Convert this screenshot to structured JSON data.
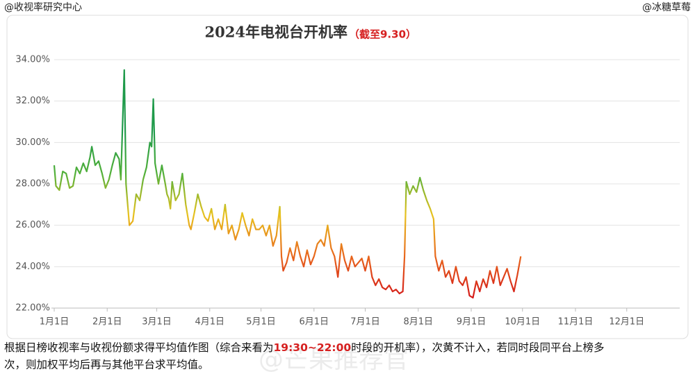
{
  "chart_data": {
    "type": "line",
    "source_left": "@收视率研究中心",
    "source_right": "@冰糖草莓",
    "title": "2024年电视台开机率",
    "subtitle": "（截至9.30）",
    "subtitle_color": "#d62020",
    "x": [
      0,
      1,
      3,
      5,
      7,
      9,
      11,
      13,
      15,
      17,
      19,
      21,
      22,
      24,
      26,
      28,
      30,
      32,
      34,
      36,
      38,
      39,
      41,
      42,
      43,
      44,
      46,
      48,
      50,
      52,
      54,
      56,
      57,
      58,
      59,
      61,
      63,
      65,
      66,
      67,
      68,
      69,
      71,
      73,
      75,
      77,
      79,
      80,
      82,
      84,
      86,
      88,
      90,
      92,
      94,
      96,
      98,
      100,
      102,
      104,
      106,
      108,
      110,
      112,
      114,
      116,
      118,
      120,
      122,
      124,
      126,
      128,
      130,
      132,
      133,
      134,
      136,
      138,
      140,
      142,
      144,
      146,
      148,
      150,
      152,
      154,
      156,
      158,
      160,
      162,
      164,
      166,
      168,
      170,
      172,
      174,
      176,
      178,
      180,
      182,
      184,
      186,
      188,
      190,
      192,
      194,
      196,
      198,
      200,
      202,
      204,
      205,
      206,
      208,
      210,
      212,
      214,
      216,
      218,
      220,
      222,
      223,
      225,
      227,
      229,
      231,
      233,
      235,
      237,
      239,
      241,
      243,
      245,
      247,
      249,
      251,
      253,
      255,
      257,
      259,
      261,
      263,
      265,
      267,
      269,
      271,
      273
    ],
    "values": [
      28.9,
      27.9,
      27.7,
      28.6,
      28.5,
      27.8,
      27.9,
      28.8,
      28.5,
      29.0,
      28.6,
      29.3,
      29.8,
      28.9,
      29.1,
      28.5,
      27.8,
      28.2,
      28.9,
      29.5,
      29.2,
      28.2,
      33.5,
      28.0,
      27.0,
      26.0,
      26.2,
      27.5,
      27.2,
      28.2,
      28.8,
      30.0,
      29.8,
      32.1,
      29.0,
      28.0,
      28.9,
      28.0,
      27.5,
      27.3,
      26.8,
      28.1,
      27.2,
      27.5,
      28.5,
      27.0,
      26.0,
      25.8,
      26.6,
      27.5,
      26.9,
      26.4,
      26.2,
      26.8,
      25.8,
      26.3,
      25.8,
      27.0,
      25.6,
      26.0,
      25.3,
      25.8,
      26.6,
      26.0,
      25.5,
      26.3,
      25.8,
      25.8,
      26.0,
      25.5,
      26.0,
      25.0,
      25.5,
      26.9,
      24.5,
      23.8,
      24.2,
      24.9,
      24.3,
      25.2,
      24.5,
      24.0,
      24.8,
      24.1,
      24.5,
      25.1,
      25.3,
      25.0,
      26.0,
      24.9,
      24.5,
      23.5,
      25.1,
      24.3,
      23.8,
      24.5,
      24.0,
      24.2,
      24.4,
      23.8,
      24.5,
      23.5,
      23.1,
      23.4,
      23.0,
      22.9,
      23.1,
      22.8,
      22.9,
      22.7,
      22.8,
      24.5,
      28.1,
      27.5,
      27.9,
      27.6,
      28.3,
      27.7,
      27.2,
      26.8,
      26.3,
      24.5,
      23.8,
      24.3,
      23.5,
      23.8,
      23.2,
      24.0,
      23.3,
      23.1,
      23.5,
      22.6,
      22.5,
      23.3,
      22.8,
      23.4,
      23.0,
      23.8,
      23.2,
      24.0,
      23.1,
      23.5,
      23.9,
      23.3,
      22.8,
      23.6,
      24.5
    ],
    "gradient": [
      {
        "value": 22.5,
        "color": "#d41a1a"
      },
      {
        "value": 24.5,
        "color": "#e8661c"
      },
      {
        "value": 26.5,
        "color": "#e8c21e"
      },
      {
        "value": 28.5,
        "color": "#52b03a"
      },
      {
        "value": 30.5,
        "color": "#1f9a4a"
      }
    ],
    "xlim": [
      0,
      366
    ],
    "xticks": [
      {
        "value": 0,
        "label": "1月1日"
      },
      {
        "value": 31,
        "label": "2月1日"
      },
      {
        "value": 60,
        "label": "3月1日"
      },
      {
        "value": 91,
        "label": "4月1日"
      },
      {
        "value": 121,
        "label": "5月1日"
      },
      {
        "value": 152,
        "label": "6月1日"
      },
      {
        "value": 182,
        "label": "7月1日"
      },
      {
        "value": 213,
        "label": "8月1日"
      },
      {
        "value": 244,
        "label": "9月1日"
      },
      {
        "value": 274,
        "label": "10月1日"
      },
      {
        "value": 305,
        "label": "11月1日"
      },
      {
        "value": 335,
        "label": "12月1日"
      }
    ],
    "ylim": [
      22,
      34
    ],
    "yticks": [
      {
        "value": 22,
        "label": "22.00%"
      },
      {
        "value": 24,
        "label": "24.00%"
      },
      {
        "value": 26,
        "label": "26.00%"
      },
      {
        "value": 28,
        "label": "28.00%"
      },
      {
        "value": 30,
        "label": "30.00%"
      },
      {
        "value": 32,
        "label": "32.00%"
      },
      {
        "value": 34,
        "label": "34.00%"
      }
    ],
    "grid": true,
    "note_before": "根据日榜收视率与收视份额求得平均值作图（综合来看为",
    "note_highlight": "19:30~22:00",
    "note_after": "时段的开机率），次黄不计入，若同时段同平台上榜多",
    "note_line2": "次，则加权平均后再与其他平台求平均值。",
    "watermark": "@芒果推荐官"
  }
}
